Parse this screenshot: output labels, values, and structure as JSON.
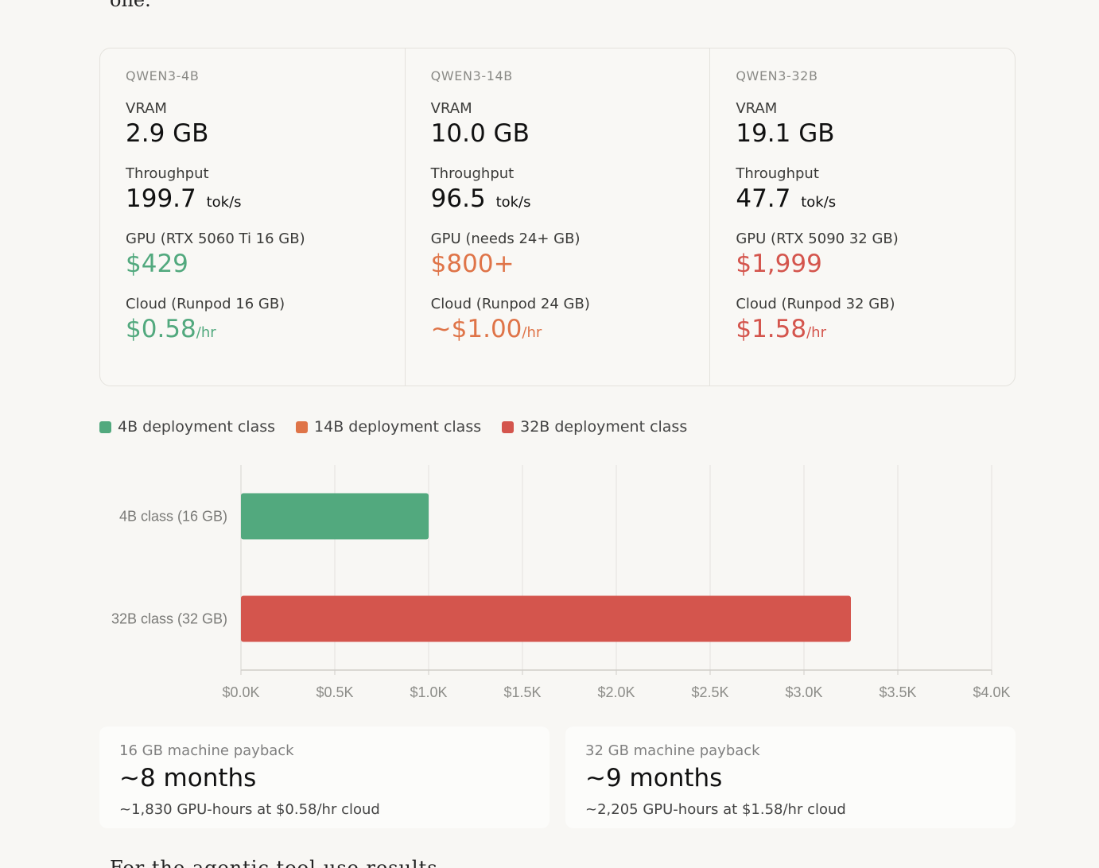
{
  "prose": {
    "top_fragment": "one.",
    "bottom_fragment": "For the agentic tool-use results"
  },
  "models": [
    {
      "name": "QWEN3-4B",
      "vram_label": "VRAM",
      "vram_value": "2.9 GB",
      "throughput_label": "Throughput",
      "throughput_value": "199.7",
      "throughput_unit": "tok/s",
      "gpu_label": "GPU (RTX 5060 Ti 16 GB)",
      "gpu_price": "$429",
      "cloud_label": "Cloud (Runpod 16 GB)",
      "cloud_price": "$0.58",
      "cloud_unit": "/hr",
      "color": "#52a97e"
    },
    {
      "name": "QWEN3-14B",
      "vram_label": "VRAM",
      "vram_value": "10.0 GB",
      "throughput_label": "Throughput",
      "throughput_value": "96.5",
      "throughput_unit": "tok/s",
      "gpu_label": "GPU (needs 24+ GB)",
      "gpu_price": "$800+",
      "cloud_label": "Cloud (Runpod 24 GB)",
      "cloud_price": "~$1.00",
      "cloud_unit": "/hr",
      "color": "#df7448"
    },
    {
      "name": "QWEN3-32B",
      "vram_label": "VRAM",
      "vram_value": "19.1 GB",
      "throughput_label": "Throughput",
      "throughput_value": "47.7",
      "throughput_unit": "tok/s",
      "gpu_label": "GPU (RTX 5090 32 GB)",
      "gpu_price": "$1,999",
      "cloud_label": "Cloud (Runpod 32 GB)",
      "cloud_price": "$1.58",
      "cloud_unit": "/hr",
      "color": "#d4554d"
    }
  ],
  "legend": [
    {
      "label": "4B deployment class",
      "color": "#52a97e"
    },
    {
      "label": "14B deployment class",
      "color": "#df7448"
    },
    {
      "label": "32B deployment class",
      "color": "#d4554d"
    }
  ],
  "chart_data": {
    "type": "bar",
    "orientation": "horizontal",
    "categories": [
      "4B class (16 GB)",
      "32B class (32 GB)"
    ],
    "values": [
      1000,
      3250
    ],
    "colors": [
      "#52a97e",
      "#d4554d"
    ],
    "xlim": [
      0,
      4000
    ],
    "x_ticks": [
      0,
      500,
      1000,
      1500,
      2000,
      2500,
      3000,
      3500,
      4000
    ],
    "x_tick_labels": [
      "$0.0K",
      "$0.5K",
      "$1.0K",
      "$1.5K",
      "$2.0K",
      "$2.5K",
      "$3.0K",
      "$3.5K",
      "$4.0K"
    ],
    "grid": true,
    "legend_position": "top-left"
  },
  "payback": [
    {
      "label": "16 GB machine payback",
      "value": "~8 months",
      "detail": "~1,830 GPU-hours at $0.58/hr cloud"
    },
    {
      "label": "32 GB machine payback",
      "value": "~9 months",
      "detail": "~2,205 GPU-hours at $1.58/hr cloud"
    }
  ]
}
